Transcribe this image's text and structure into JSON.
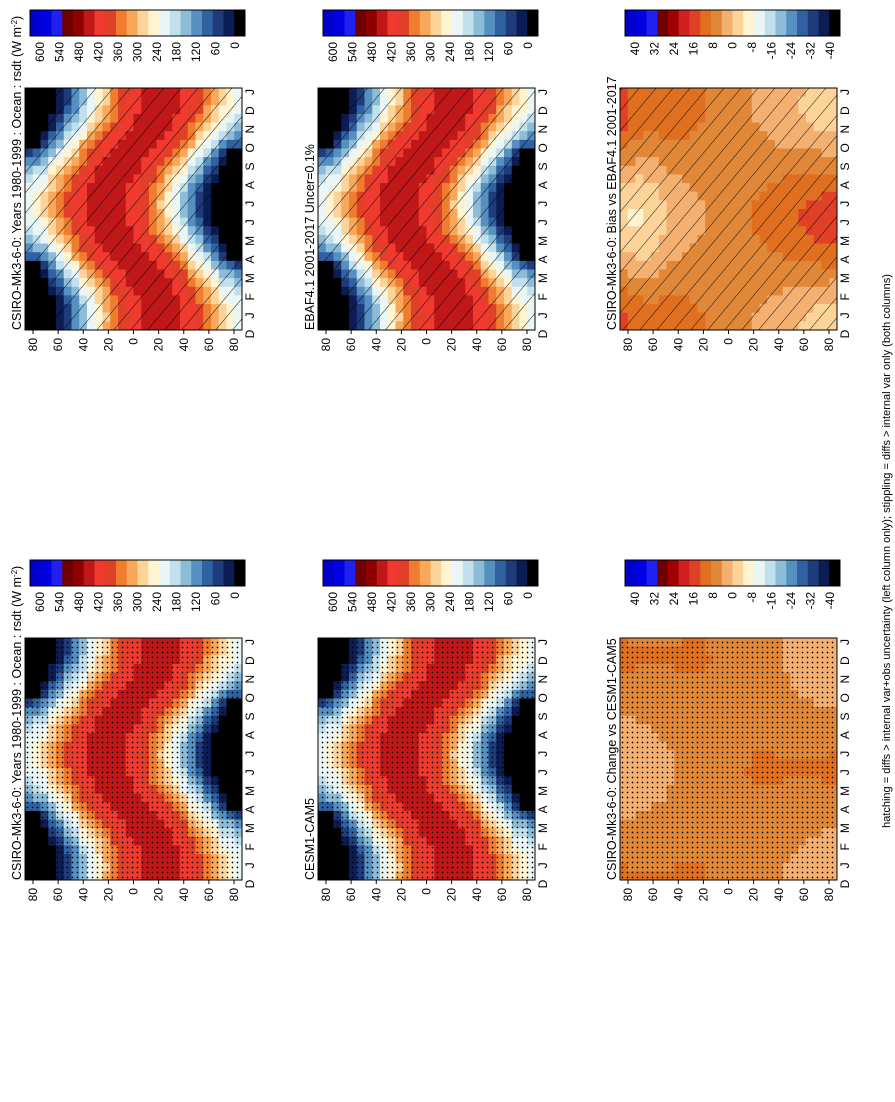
{
  "figure_note": "hatching = diffs > internal var+obs uncertainty (left column only); stippling = diffs > internal var only (both columns)",
  "colors": {
    "abs": [
      "#000000",
      "#0c1c54",
      "#1e3c7c",
      "#3061a0",
      "#5590c0",
      "#8cbcd8",
      "#c0e0ec",
      "#eaf6f6",
      "#fff4d2",
      "#fcd49a",
      "#f8a858",
      "#f07c30",
      "#e04028",
      "#f03a30",
      "#c01818",
      "#900000",
      "#700000",
      "#2020f0",
      "#0000e0",
      "#0000cc"
    ],
    "diff": [
      "#000000",
      "#0c1c54",
      "#1e3c7c",
      "#3061a0",
      "#5590c0",
      "#8cbcd8",
      "#c0e0ec",
      "#eaf6f6",
      "#fff4d2",
      "#fcd49a",
      "#f4b070",
      "#e08838",
      "#e07020",
      "#e04028",
      "#d02020",
      "#a00000",
      "#700000",
      "#2020f0",
      "#0000e0",
      "#0000cc"
    ]
  },
  "chart_data": [
    {
      "id": "model-climatology",
      "type": "heatmap",
      "title": "CSIRO-Mk3-6-0: Years 1980-1999 : Ocean : rsdt (W m",
      "title_sup": "-2",
      "title_suffix": ")",
      "x_axis_label": "",
      "y_axis_label": "",
      "x_ticks": [
        "D",
        "J",
        "F",
        "M",
        "A",
        "M",
        "J",
        "J",
        "A",
        "S",
        "O",
        "N",
        "D",
        "J"
      ],
      "y_ticks": [
        "80",
        "60",
        "40",
        "20",
        "0",
        "20",
        "40",
        "60",
        "80"
      ],
      "y_tick_values": [
        -80,
        -60,
        -40,
        -20,
        0,
        20,
        40,
        60,
        80
      ],
      "y_range": [
        -90,
        90
      ],
      "colorbar_ticks": [
        "600",
        "540",
        "480",
        "420",
        "360",
        "300",
        "240",
        "180",
        "120",
        "60",
        "0"
      ],
      "colorbar_range": [
        0,
        600
      ],
      "scale": "abs",
      "hatching": true,
      "stippling": false
    },
    {
      "id": "model-climatology-repeat",
      "type": "heatmap",
      "title": "CSIRO-Mk3-6-0: Years 1980-1999 : Ocean : rsdt (W m",
      "title_sup": "-2",
      "title_suffix": ")",
      "x_ticks": [
        "D",
        "J",
        "F",
        "M",
        "A",
        "M",
        "J",
        "J",
        "A",
        "S",
        "O",
        "N",
        "D",
        "J"
      ],
      "y_ticks": [
        "80",
        "60",
        "40",
        "20",
        "0",
        "20",
        "40",
        "60",
        "80"
      ],
      "y_range": [
        -90,
        90
      ],
      "colorbar_ticks": [
        "600",
        "540",
        "480",
        "420",
        "360",
        "300",
        "240",
        "180",
        "120",
        "60",
        "0"
      ],
      "colorbar_range": [
        0,
        600
      ],
      "scale": "abs",
      "hatching": false,
      "stippling": true
    },
    {
      "id": "observations",
      "type": "heatmap",
      "title": "EBAF4.1 2001-2017 Uncer=0.1%",
      "x_ticks": [
        "D",
        "J",
        "F",
        "M",
        "A",
        "M",
        "J",
        "J",
        "A",
        "S",
        "O",
        "N",
        "D",
        "J"
      ],
      "y_ticks": [
        "80",
        "60",
        "40",
        "20",
        "0",
        "20",
        "40",
        "60",
        "80"
      ],
      "y_range": [
        -90,
        90
      ],
      "colorbar_ticks": [
        "600",
        "540",
        "480",
        "420",
        "360",
        "300",
        "240",
        "180",
        "120",
        "60",
        "0"
      ],
      "colorbar_range": [
        0,
        600
      ],
      "scale": "abs",
      "hatching": true,
      "stippling": false
    },
    {
      "id": "comparison-model",
      "type": "heatmap",
      "title": "CESM1-CAM5",
      "x_ticks": [
        "D",
        "J",
        "F",
        "M",
        "A",
        "M",
        "J",
        "J",
        "A",
        "S",
        "O",
        "N",
        "D",
        "J"
      ],
      "y_ticks": [
        "80",
        "60",
        "40",
        "20",
        "0",
        "20",
        "40",
        "60",
        "80"
      ],
      "y_range": [
        -90,
        90
      ],
      "colorbar_ticks": [
        "600",
        "540",
        "480",
        "420",
        "360",
        "300",
        "240",
        "180",
        "120",
        "60",
        "0"
      ],
      "colorbar_range": [
        0,
        600
      ],
      "scale": "abs",
      "hatching": false,
      "stippling": true
    },
    {
      "id": "bias",
      "type": "heatmap",
      "title": "CSIRO-Mk3-6-0: Bias vs EBAF4.1 2001-2017",
      "x_ticks": [
        "D",
        "J",
        "F",
        "M",
        "A",
        "M",
        "J",
        "J",
        "A",
        "S",
        "O",
        "N",
        "D",
        "J"
      ],
      "y_ticks": [
        "80",
        "60",
        "40",
        "20",
        "0",
        "20",
        "40",
        "60",
        "80"
      ],
      "y_range": [
        -90,
        90
      ],
      "colorbar_ticks": [
        "40",
        "32",
        "24",
        "16",
        "8",
        "0",
        "-8",
        "-16",
        "-24",
        "-32",
        "-40"
      ],
      "colorbar_range": [
        -40,
        40
      ],
      "scale": "diff",
      "hatching": true,
      "stippling": false
    },
    {
      "id": "change",
      "type": "heatmap",
      "title": "CSIRO-Mk3-6-0: Change vs CESM1-CAM5",
      "x_ticks": [
        "D",
        "J",
        "F",
        "M",
        "A",
        "M",
        "J",
        "J",
        "A",
        "S",
        "O",
        "N",
        "D",
        "J"
      ],
      "y_ticks": [
        "80",
        "60",
        "40",
        "20",
        "0",
        "20",
        "40",
        "60",
        "80"
      ],
      "y_range": [
        -90,
        90
      ],
      "colorbar_ticks": [
        "40",
        "32",
        "24",
        "16",
        "8",
        "0",
        "-8",
        "-16",
        "-24",
        "-32",
        "-40"
      ],
      "colorbar_range": [
        -40,
        40
      ],
      "scale": "diff",
      "hatching": false,
      "stippling": true
    }
  ]
}
